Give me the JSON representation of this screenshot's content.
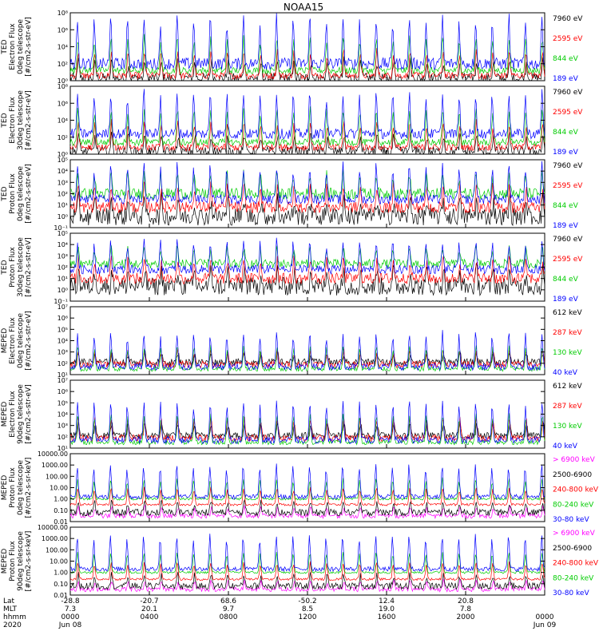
{
  "title": "NOAA15",
  "chart_data": {
    "type": "line",
    "title": "NOAA15",
    "panels": [
      {
        "ylabel": [
          "TED",
          "Electron Flux",
          "0deg telescope",
          "[#/cm2-s-str-eV]"
        ],
        "ylim_exp": [
          0,
          8
        ],
        "tick_labels": [
          "10⁰",
          "10²",
          "10⁴",
          "10⁶",
          "10⁸"
        ],
        "scale": "log",
        "series": [
          {
            "name": "7960 eV",
            "color": "#000000",
            "base": 0.3,
            "amp": 2.0,
            "noise": 0.6
          },
          {
            "name": "2595 eV",
            "color": "#ff0000",
            "base": 0.6,
            "amp": 3.0,
            "noise": 0.4
          },
          {
            "name": "844 eV",
            "color": "#00cc00",
            "base": 1.2,
            "amp": 4.0,
            "noise": 0.4
          },
          {
            "name": "189 eV",
            "color": "#0000ff",
            "base": 2.0,
            "amp": 5.5,
            "noise": 0.7
          }
        ]
      },
      {
        "ylabel": [
          "TED",
          "Electron Flux",
          "30deg telescope",
          "[#/cm2-s-str-eV]"
        ],
        "ylim_exp": [
          0,
          8
        ],
        "tick_labels": [
          "10⁰",
          "10²",
          "10⁴",
          "10⁶",
          "10⁸"
        ],
        "scale": "log",
        "series": [
          {
            "name": "7960 eV",
            "color": "#000000",
            "base": 0.3,
            "amp": 2.0,
            "noise": 0.6
          },
          {
            "name": "2595 eV",
            "color": "#ff0000",
            "base": 0.8,
            "amp": 3.0,
            "noise": 0.4
          },
          {
            "name": "844 eV",
            "color": "#00cc00",
            "base": 1.4,
            "amp": 4.0,
            "noise": 0.4
          },
          {
            "name": "189 eV",
            "color": "#0000ff",
            "base": 2.4,
            "amp": 5.0,
            "noise": 0.6
          }
        ]
      },
      {
        "ylabel": [
          "TED",
          "Proton Flux",
          "0deg telescope",
          "[#/cm2-s-str-eV]"
        ],
        "ylim_exp": [
          -1,
          5
        ],
        "tick_labels": [
          "10⁻¹",
          "10⁰",
          "10¹",
          "10²",
          "10³",
          "10⁴",
          "10⁵"
        ],
        "scale": "log",
        "series": [
          {
            "name": "7960 eV",
            "color": "#000000",
            "base": 0.0,
            "amp": 1.5,
            "noise": 0.8
          },
          {
            "name": "2595 eV",
            "color": "#ff0000",
            "base": 0.8,
            "amp": 2.0,
            "noise": 0.5
          },
          {
            "name": "844 eV",
            "color": "#00cc00",
            "base": 2.0,
            "amp": 1.8,
            "noise": 0.5
          },
          {
            "name": "189 eV",
            "color": "#0000ff",
            "base": 1.5,
            "amp": 3.0,
            "noise": 0.4
          }
        ]
      },
      {
        "ylabel": [
          "TED",
          "Proton Flux",
          "30deg telescope",
          "[#/cm2-s-str-eV]"
        ],
        "ylim_exp": [
          -1,
          5
        ],
        "tick_labels": [
          "10⁻¹",
          "10⁰",
          "10¹",
          "10²",
          "10³",
          "10⁴",
          "10⁵"
        ],
        "scale": "log",
        "series": [
          {
            "name": "7960 eV",
            "color": "#000000",
            "base": 0.3,
            "amp": 1.5,
            "noise": 0.8
          },
          {
            "name": "2595 eV",
            "color": "#ff0000",
            "base": 1.0,
            "amp": 1.8,
            "noise": 0.5
          },
          {
            "name": "844 eV",
            "color": "#00cc00",
            "base": 2.3,
            "amp": 1.5,
            "noise": 0.4
          },
          {
            "name": "189 eV",
            "color": "#0000ff",
            "base": 1.8,
            "amp": 2.5,
            "noise": 0.4
          }
        ]
      },
      {
        "ylabel": [
          "MEPED",
          "Electron Flux",
          "0deg telescope",
          "[#/cm2-s-str-eV]"
        ],
        "ylim_exp": [
          1,
          7
        ],
        "tick_labels": [
          "10¹",
          "10²",
          "10³",
          "10⁴",
          "10⁵",
          "10⁶",
          "10⁷"
        ],
        "scale": "log",
        "series": [
          {
            "name": "612 keV",
            "color": "#000000",
            "base": 2.1,
            "amp": 0.8,
            "noise": 0.3
          },
          {
            "name": "287 keV",
            "color": "#ff0000",
            "base": 1.9,
            "amp": 1.2,
            "noise": 0.3
          },
          {
            "name": "130 keV",
            "color": "#00cc00",
            "base": 1.5,
            "amp": 2.0,
            "noise": 0.2
          },
          {
            "name": "40 keV",
            "color": "#0000ff",
            "base": 1.7,
            "amp": 3.0,
            "noise": 0.3
          }
        ]
      },
      {
        "ylabel": [
          "MEPED",
          "Electron Flux",
          "90deg telescope",
          "[#/cm2-s-str-eV]"
        ],
        "ylim_exp": [
          1,
          7
        ],
        "tick_labels": [
          "10¹",
          "10²",
          "10³",
          "10⁴",
          "10⁵",
          "10⁶",
          "10⁷"
        ],
        "scale": "log",
        "series": [
          {
            "name": "612 keV",
            "color": "#000000",
            "base": 2.1,
            "amp": 1.2,
            "noise": 0.3
          },
          {
            "name": "287 keV",
            "color": "#ff0000",
            "base": 1.9,
            "amp": 1.8,
            "noise": 0.3
          },
          {
            "name": "130 keV",
            "color": "#00cc00",
            "base": 1.5,
            "amp": 2.5,
            "noise": 0.2
          },
          {
            "name": "40 keV",
            "color": "#0000ff",
            "base": 1.7,
            "amp": 3.5,
            "noise": 0.3
          }
        ]
      },
      {
        "ylabel": [
          "MEPED",
          "Proton Flux",
          "0deg telescope",
          "[#/cm2-s-sr-keV]"
        ],
        "ylim_exp": [
          -2,
          4
        ],
        "tick_labels": [
          "0.01",
          "0.10",
          "1.00",
          "10.00",
          "100.00",
          "1000.00",
          "10000.00"
        ],
        "scale": "log",
        "series": [
          {
            "name": "> 6900 keV",
            "color": "#ff00ff",
            "base": -1.5,
            "amp": 0.8,
            "noise": 0.2
          },
          {
            "name": "2500-6900",
            "color": "#000000",
            "base": -1.2,
            "amp": 1.0,
            "noise": 0.3
          },
          {
            "name": "240-800 keV",
            "color": "#ff0000",
            "base": -0.5,
            "amp": 1.5,
            "noise": 0.1
          },
          {
            "name": "80-240 keV",
            "color": "#00cc00",
            "base": 0.0,
            "amp": 1.8,
            "noise": 0.1
          },
          {
            "name": "30-80 keV",
            "color": "#0000ff",
            "base": 0.2,
            "amp": 2.8,
            "noise": 0.2
          }
        ]
      },
      {
        "ylabel": [
          "MEPED",
          "Proton Flux",
          "90deg telescope",
          "[#/cm2-s-sr-keV]"
        ],
        "ylim_exp": [
          -2,
          4
        ],
        "tick_labels": [
          "0.01",
          "0.10",
          "1.00",
          "10.00",
          "100.00",
          "1000.00",
          "10000.00"
        ],
        "scale": "log",
        "series": [
          {
            "name": "> 6900 keV",
            "color": "#ff00ff",
            "base": -1.5,
            "amp": 0.8,
            "noise": 0.2
          },
          {
            "name": "2500-6900",
            "color": "#000000",
            "base": -1.2,
            "amp": 1.0,
            "noise": 0.3
          },
          {
            "name": "240-800 keV",
            "color": "#ff0000",
            "base": -0.6,
            "amp": 1.5,
            "noise": 0.1
          },
          {
            "name": "80-240 keV",
            "color": "#00cc00",
            "base": 0.0,
            "amp": 1.8,
            "noise": 0.1
          },
          {
            "name": "30-80 keV",
            "color": "#0000ff",
            "base": 0.3,
            "amp": 3.0,
            "noise": 0.2
          }
        ]
      }
    ],
    "x_axis": {
      "row_labels": [
        "Lat",
        "MLT",
        "hhmm",
        "2020"
      ],
      "ticks": [
        {
          "lat": "-28.8",
          "mlt": "7.3",
          "hhmm": "0000",
          "date": "Jun 08"
        },
        {
          "lat": "-20.7",
          "mlt": "20.1",
          "hhmm": "0400",
          "date": ""
        },
        {
          "lat": "68.6",
          "mlt": "9.7",
          "hhmm": "0800",
          "date": ""
        },
        {
          "lat": "-50.2",
          "mlt": "8.5",
          "hhmm": "1200",
          "date": ""
        },
        {
          "lat": "12.4",
          "mlt": "19.0",
          "hhmm": "1600",
          "date": ""
        },
        {
          "lat": "20.8",
          "mlt": "7.8",
          "hhmm": "2000",
          "date": ""
        },
        {
          "lat": "",
          "mlt": "",
          "hhmm": "0000",
          "date": "Jun 09"
        }
      ]
    },
    "grid": false
  }
}
